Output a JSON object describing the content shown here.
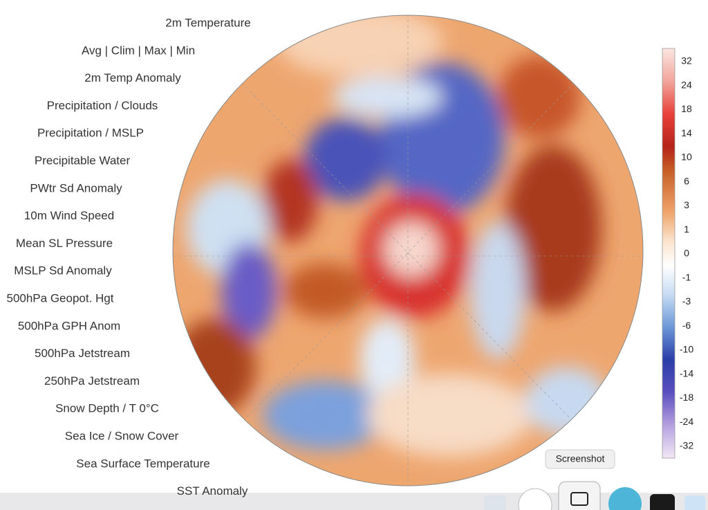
{
  "menu": {
    "items": [
      "2m Temperature",
      "Avg  |  Clim  |  Max  |  Min",
      "2m Temp Anomaly",
      "Precipitation / Clouds",
      "Precipitation / MSLP",
      "Precipitable Water",
      "PWtr Sd Anomaly",
      "10m Wind Speed",
      "Mean SL Pressure",
      "MSLP Sd Anomaly",
      "500hPa Geopot. Hgt",
      "500hPa GPH Anom",
      "500hPa Jetstream",
      "250hPa Jetstream",
      "Snow Depth / T 0°C",
      "Sea Ice / Snow Cover",
      "Sea Surface Temperature",
      "SST Anomaly"
    ],
    "selected": 2
  },
  "colorbar": {
    "labels": [
      32,
      24,
      18,
      14,
      10,
      6,
      3,
      1,
      0,
      -1,
      -3,
      -6,
      -10,
      -14,
      -18,
      -24,
      -32
    ]
  },
  "tooltip": {
    "text": "Screenshot"
  }
}
